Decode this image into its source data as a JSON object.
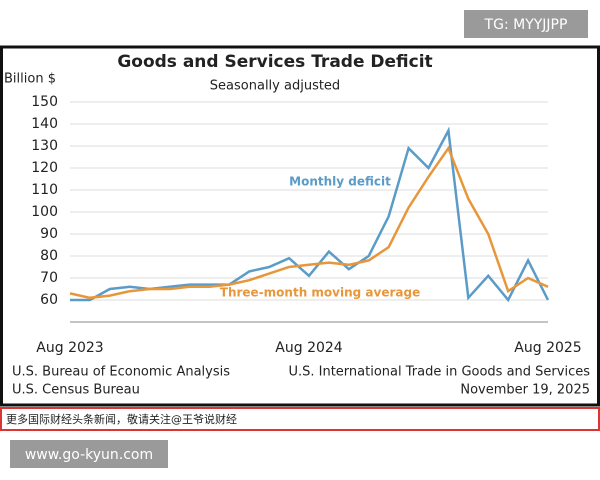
{
  "watermark_top": "TG: MYYJJPP",
  "chart_data": {
    "type": "line",
    "title": "Goods and Services Trade Deficit",
    "subtitle": "Seasonally adjusted",
    "y_label": "Billion $",
    "categories": [
      "Aug 2023",
      null,
      null,
      null,
      null,
      null,
      null,
      null,
      null,
      null,
      null,
      null,
      "Aug 2024",
      null,
      null,
      null,
      null,
      null,
      null,
      null,
      null,
      null,
      null,
      null,
      "Aug 2025"
    ],
    "series": [
      {
        "name": "Monthly deficit",
        "color": "#5b9bc8",
        "values": [
          60,
          60,
          65,
          66,
          65,
          66,
          67,
          67,
          67,
          73,
          75,
          79,
          71,
          82,
          74,
          80,
          98,
          129,
          120,
          137,
          61,
          71,
          60,
          78,
          60
        ]
      },
      {
        "name": "Three-month moving average",
        "color": "#e8963a",
        "values": [
          63,
          61,
          62,
          64,
          65,
          65,
          66,
          66,
          67,
          69,
          72,
          75,
          76,
          77,
          76,
          78,
          84,
          102,
          116,
          129,
          106,
          90,
          64,
          70,
          66
        ]
      }
    ],
    "ylim": [
      50,
      150
    ],
    "yticks": [
      60,
      70,
      80,
      90,
      100,
      110,
      120,
      130,
      140,
      150
    ],
    "grid": true,
    "source_left": [
      "U.S. Bureau of Economic Analysis",
      "U.S. Census Bureau"
    ],
    "source_right": [
      "U.S. International Trade in Goods and Services",
      "November 19, 2025"
    ]
  },
  "banner": "更多国际财经头条新闻，敬请关注@王爷说财经",
  "watermark_bottom": "www.go-kyun.com"
}
